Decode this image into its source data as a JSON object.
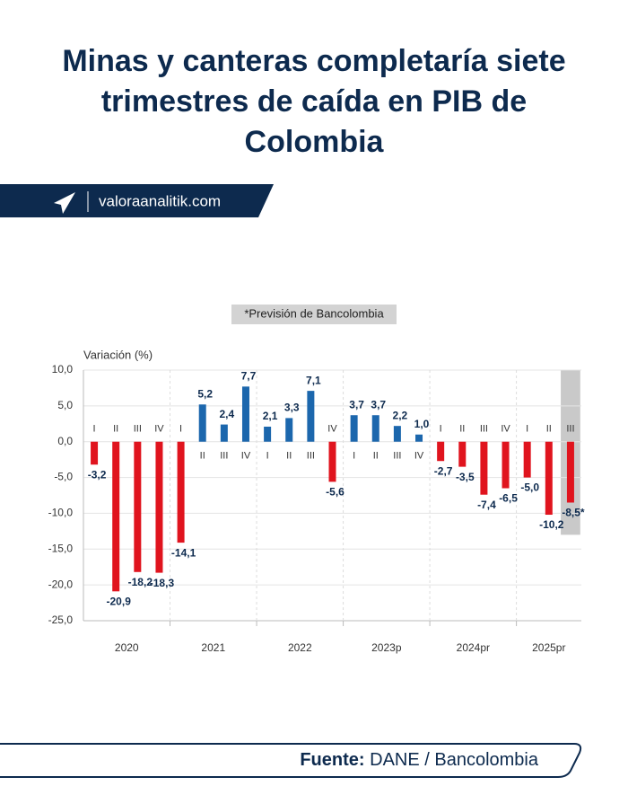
{
  "title": "Minas y canteras completaría siete trimestres de caída en PIB de Colombia",
  "brand": "valoraanalitik.com",
  "source": {
    "label": "Fuente:",
    "text": "DANE / Bancolombia"
  },
  "chart_data": {
    "type": "bar",
    "annotation": "*Previsión de Bancolombia",
    "y_label": "Variación (%)",
    "categories": [
      "I",
      "II",
      "III",
      "IV",
      "I",
      "II",
      "III",
      "IV",
      "I",
      "II",
      "III",
      "IV",
      "I",
      "II",
      "III",
      "IV",
      "I",
      "II",
      "III",
      "IV",
      "I",
      "II",
      "III"
    ],
    "x_groups": [
      "2020",
      "2021",
      "2022",
      "2023p",
      "2024pr",
      "2025pr"
    ],
    "values": [
      -3.2,
      -20.9,
      -18.2,
      -18.3,
      -14.1,
      5.2,
      2.4,
      7.7,
      2.1,
      3.3,
      7.1,
      -5.6,
      3.7,
      3.7,
      2.2,
      1.0,
      -2.7,
      -3.5,
      -7.4,
      -6.5,
      -5.0,
      -10.2,
      -8.5
    ],
    "value_labels": [
      "-3,2",
      "-20,9",
      "-18,2",
      "-18,3",
      "-14,1",
      "5,2",
      "2,4",
      "7,7",
      "2,1",
      "3,3",
      "7,1",
      "-5,6",
      "3,7",
      "3,7",
      "2,2",
      "1,0",
      "-2,7",
      "-3,5",
      "-7,4",
      "-6,5",
      "-5,0",
      "-10,2",
      "-8,5*"
    ],
    "colors": {
      "positive": "#1c67ad",
      "negative": "#e0141e"
    },
    "highlight": {
      "index": 22,
      "color": "#c9c9c9"
    },
    "ylim": [
      -25,
      10
    ],
    "yticks": [
      {
        "value": 10,
        "label": "10,0"
      },
      {
        "value": 5,
        "label": "5,0"
      },
      {
        "value": 0,
        "label": "0,0"
      },
      {
        "value": -5,
        "label": "-5,0"
      },
      {
        "value": -10,
        "label": "-10,0"
      },
      {
        "value": -15,
        "label": "-15,0"
      },
      {
        "value": -20,
        "label": "-20,0"
      },
      {
        "value": -25,
        "label": "-25,0"
      }
    ],
    "grid": true
  }
}
